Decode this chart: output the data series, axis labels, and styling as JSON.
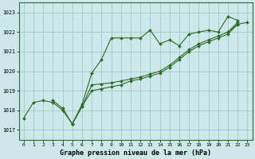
{
  "title": "Graphe pression niveau de la mer (hPa)",
  "background_color": "#cde8e8",
  "grid_color": "#a8cccc",
  "line_color": "#2d6a2d",
  "xlim": [
    -0.5,
    23.5
  ],
  "ylim": [
    1016.5,
    1023.5
  ],
  "yticks": [
    1017,
    1018,
    1019,
    1020,
    1021,
    1022,
    1023
  ],
  "xticks": [
    0,
    1,
    2,
    3,
    4,
    5,
    6,
    7,
    8,
    9,
    10,
    11,
    12,
    13,
    14,
    15,
    16,
    17,
    18,
    19,
    20,
    21,
    22,
    23
  ],
  "series": [
    [
      1017.6,
      1018.4,
      1018.5,
      1018.4,
      1018.0,
      1017.3,
      1018.3,
      1019.9,
      1020.6,
      1021.7,
      1021.7,
      1021.7,
      1021.7,
      1022.1,
      1021.4,
      1021.6,
      1021.3,
      1021.9,
      1022.0,
      1022.1,
      1022.0,
      1022.8,
      1022.6,
      null
    ],
    [
      null,
      null,
      null,
      1018.5,
      1018.1,
      1017.3,
      null,
      null,
      null,
      null,
      null,
      null,
      null,
      null,
      null,
      null,
      null,
      null,
      null,
      null,
      null,
      null,
      null,
      null
    ],
    [
      null,
      null,
      null,
      null,
      null,
      1017.3,
      1018.2,
      1019.3,
      1019.35,
      1019.4,
      1019.5,
      1019.6,
      1019.7,
      1019.85,
      1020.0,
      1020.3,
      1020.7,
      1021.1,
      1021.4,
      1021.6,
      1021.8,
      1022.0,
      1022.5,
      null
    ],
    [
      null,
      null,
      null,
      null,
      null,
      1017.3,
      1018.2,
      1019.0,
      1019.1,
      1019.2,
      1019.3,
      1019.5,
      1019.6,
      1019.75,
      1019.9,
      1020.2,
      1020.6,
      1021.0,
      1021.3,
      1021.5,
      1021.7,
      1021.9,
      1022.4,
      null
    ],
    [
      null,
      null,
      null,
      null,
      null,
      null,
      null,
      null,
      null,
      null,
      null,
      null,
      null,
      null,
      null,
      null,
      null,
      null,
      null,
      null,
      null,
      1022.0,
      1022.4,
      1022.5
    ]
  ]
}
